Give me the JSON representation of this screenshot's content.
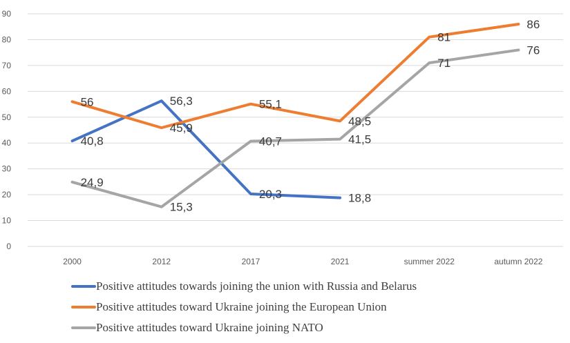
{
  "chart_data": {
    "type": "line",
    "categories": [
      "2000",
      "2012",
      "2017",
      "2021",
      "summer 2022",
      "autumn 2022"
    ],
    "ylim": [
      0,
      90
    ],
    "yticks": [
      "0",
      "10",
      "20",
      "30",
      "40",
      "50",
      "60",
      "70",
      "80",
      "90"
    ],
    "grid": true,
    "legend_position": "bottom",
    "series": [
      {
        "name": "Positive attitudes towards joining the union with Russia and Belarus",
        "color": "#4472c4",
        "values": [
          40.8,
          56.3,
          20.3,
          18.8,
          null,
          null
        ],
        "labels": [
          "40,8",
          "56,3",
          "20,3",
          "18,8",
          "",
          ""
        ]
      },
      {
        "name": "Positive attitudes toward Ukraine joining the European Union",
        "color": "#ed7d31",
        "values": [
          56,
          45.9,
          55.1,
          48.5,
          81,
          86
        ],
        "labels": [
          "56",
          "45,9",
          "55,1",
          "48,5",
          "81",
          "86"
        ]
      },
      {
        "name": "Positive attitudes toward Ukraine joining NATO",
        "color": "#a5a5a5",
        "values": [
          24.9,
          15.3,
          40.7,
          41.5,
          71,
          76
        ],
        "labels": [
          "24,9",
          "15,3",
          "40,7",
          "41,5",
          "71",
          "76"
        ]
      }
    ]
  }
}
